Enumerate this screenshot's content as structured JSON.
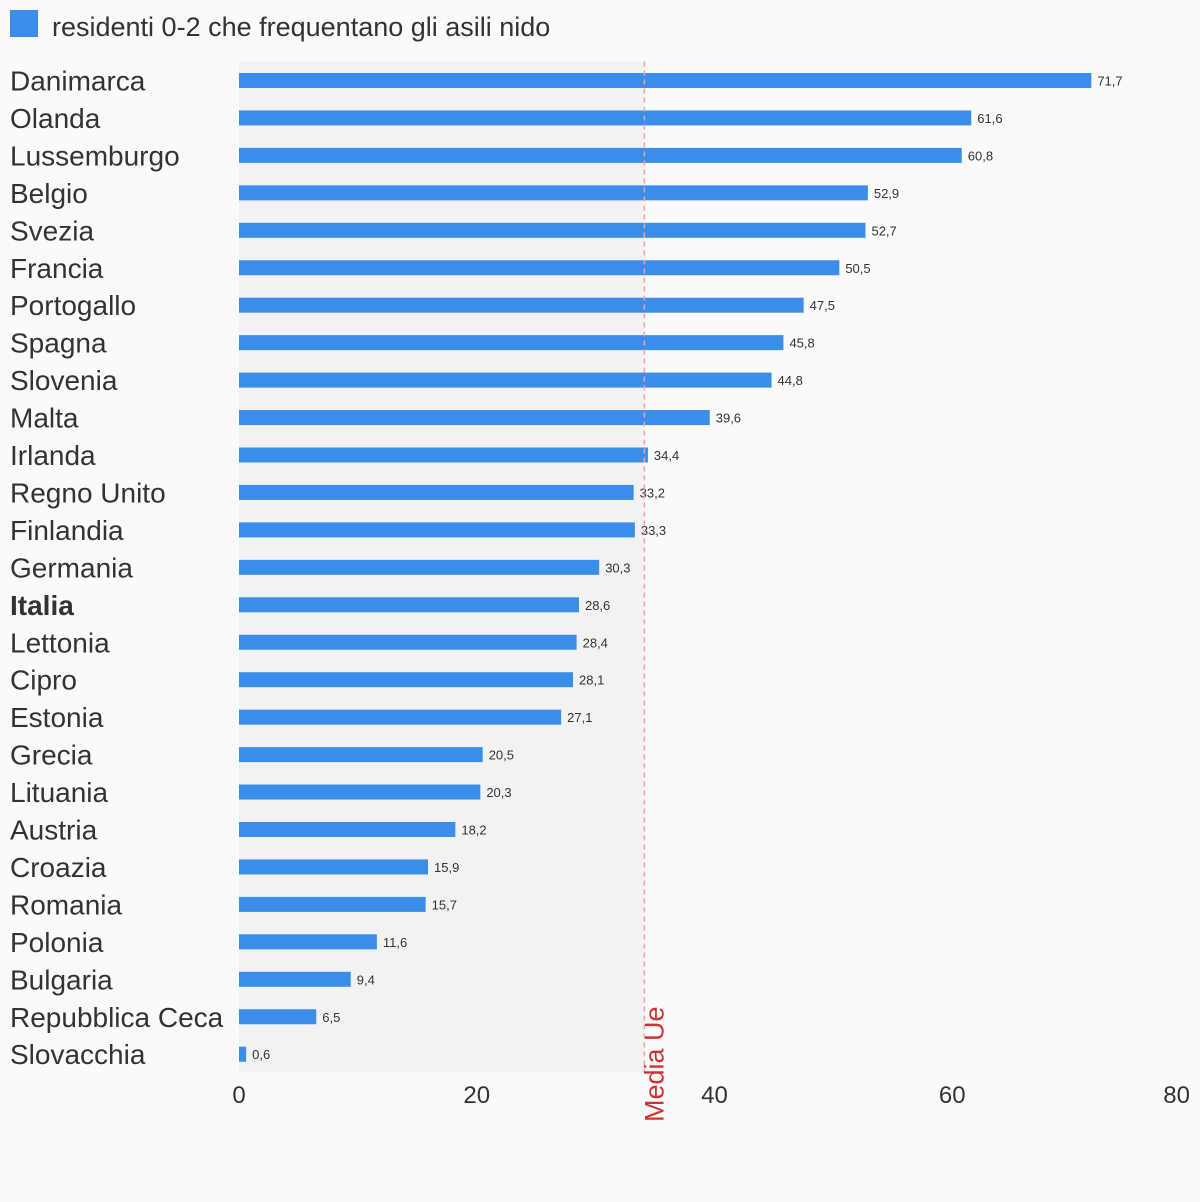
{
  "chart_data": {
    "type": "bar",
    "orientation": "horizontal",
    "title": "",
    "xlabel": "",
    "ylabel": "",
    "xlim": [
      0,
      80
    ],
    "xticks": [
      0,
      20,
      40,
      60,
      80
    ],
    "grid": false,
    "legend": {
      "placement": "top-left",
      "entries": [
        {
          "name": "residenti 0-2 che frequentano gli asili nido",
          "color": "#3a8ee9"
        }
      ]
    },
    "categories": [
      "Danimarca",
      "Olanda",
      "Lussemburgo",
      "Belgio",
      "Svezia",
      "Francia",
      "Portogallo",
      "Spagna",
      "Slovenia",
      "Malta",
      "Irlanda",
      "Regno Unito",
      "Finlandia",
      "Germania",
      "Italia",
      "Lettonia",
      "Cipro",
      "Estonia",
      "Grecia",
      "Lituania",
      "Austria",
      "Croazia",
      "Romania",
      "Polonia",
      "Bulgaria",
      "Repubblica Ceca",
      "Slovacchia"
    ],
    "highlight_category": "Italia",
    "series": [
      {
        "name": "residenti 0-2 che frequentano gli asili nido",
        "color": "#3a8ee9",
        "values": [
          71.7,
          61.6,
          60.8,
          52.9,
          52.7,
          50.5,
          47.5,
          45.8,
          44.8,
          39.6,
          34.4,
          33.2,
          33.3,
          30.3,
          28.6,
          28.4,
          28.1,
          27.1,
          20.5,
          20.3,
          18.2,
          15.9,
          15.7,
          11.6,
          9.4,
          6.5,
          0.6
        ],
        "value_labels": [
          "71,7",
          "61,6",
          "60,8",
          "52,9",
          "52,7",
          "50,5",
          "47,5",
          "45,8",
          "44,8",
          "39,6",
          "34,4",
          "33,2",
          "33,3",
          "30,3",
          "28,6",
          "28,4",
          "28,1",
          "27,1",
          "20,5",
          "20,3",
          "18,2",
          "15,9",
          "15,7",
          "11,6",
          "9,4",
          "6,5",
          "0,6"
        ]
      }
    ],
    "reference_line": {
      "label": "Media Ue",
      "value": 34.1,
      "color": "#cc3333",
      "shaded_band": [
        0,
        34.1
      ],
      "band_color": "#f2f2f2"
    }
  }
}
